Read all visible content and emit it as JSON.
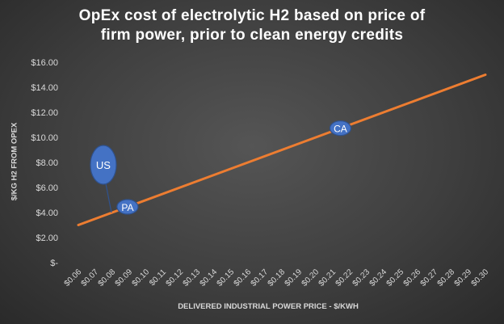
{
  "chart_data": {
    "type": "line",
    "title_lines": [
      "OpEx cost of electrolytic H2 based on price of",
      "firm power, prior to clean energy credits"
    ],
    "xlabel": "DELIVERED INDUSTRIAL POWER PRICE - $/KWH",
    "ylabel": "$/KG H2 FROM OPEX",
    "x_tick_labels": [
      "$0.06",
      "$0.07",
      "$0.08",
      "$0.09",
      "$0.10",
      "$0.11",
      "$0.12",
      "$0.13",
      "$0.14",
      "$0.15",
      "$0.16",
      "$0.17",
      "$0.18",
      "$0.19",
      "$0.20",
      "$0.21",
      "$0.22",
      "$0.23",
      "$0.24",
      "$0.25",
      "$0.26",
      "$0.27",
      "$0.28",
      "$0.29",
      "$0.30"
    ],
    "x_tick_values": [
      0.06,
      0.07,
      0.08,
      0.09,
      0.1,
      0.11,
      0.12,
      0.13,
      0.14,
      0.15,
      0.16,
      0.17,
      0.18,
      0.19,
      0.2,
      0.21,
      0.22,
      0.23,
      0.24,
      0.25,
      0.26,
      0.27,
      0.28,
      0.29,
      0.3
    ],
    "y_tick_labels": [
      "$-",
      "$2.00",
      "$4.00",
      "$6.00",
      "$8.00",
      "$10.00",
      "$12.00",
      "$14.00",
      "$16.00"
    ],
    "y_tick_values": [
      0,
      2,
      4,
      6,
      8,
      10,
      12,
      14,
      16
    ],
    "xlim": [
      0.06,
      0.3
    ],
    "ylim": [
      0,
      16
    ],
    "series": [
      {
        "name": "OpEx",
        "color": "#ed7d31",
        "x": [
          0.06,
          0.3
        ],
        "y": [
          3.0,
          15.0
        ]
      }
    ],
    "annotations": [
      {
        "label": "US",
        "x": 0.0795,
        "y": 4.0,
        "callout": true,
        "color": "#4472c4"
      },
      {
        "label": "PA",
        "x": 0.089,
        "y": 4.45,
        "color": "#4472c4"
      },
      {
        "label": "CA",
        "x": 0.2145,
        "y": 10.73,
        "color": "#4472c4"
      }
    ],
    "grid": false,
    "background_color": "#404040",
    "text_color": "#d9d9d9"
  }
}
